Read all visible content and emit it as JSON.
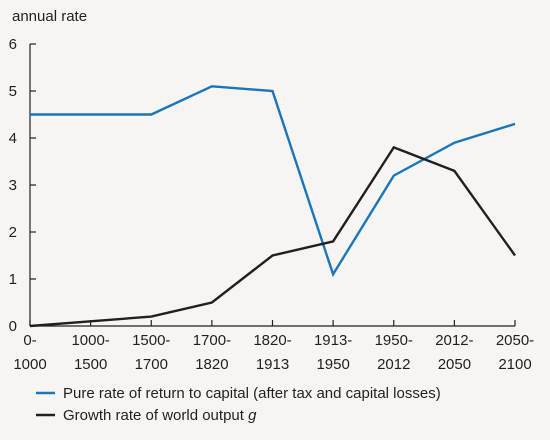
{
  "chart_data": {
    "type": "line",
    "title": "",
    "ylabel": "annual rate",
    "xlabel": "",
    "ylim": [
      0,
      6
    ],
    "yticks": [
      "0",
      "1",
      "2",
      "3",
      "4",
      "5",
      "6"
    ],
    "categories": [
      [
        "0-",
        "1000"
      ],
      [
        "1000-",
        "1500"
      ],
      [
        "1500-",
        "1700"
      ],
      [
        "1700-",
        "1820"
      ],
      [
        "1820-",
        "1913"
      ],
      [
        "1913-",
        "1950"
      ],
      [
        "1950-",
        "2012"
      ],
      [
        "2012-",
        "2050"
      ],
      [
        "2050-",
        "2100"
      ]
    ],
    "grid": false,
    "legend_position": "bottom-left",
    "series": [
      {
        "name": "Pure rate of return to capital (after tax and capital losses)",
        "color": "#1b75bb",
        "values": [
          4.5,
          4.5,
          4.5,
          5.1,
          5.0,
          1.1,
          3.2,
          3.9,
          4.3
        ]
      },
      {
        "name": "Growth rate of world output g",
        "name_plain": "Growth rate of world output ",
        "name_italic": "g",
        "color": "#231f20",
        "values": [
          0.0,
          0.1,
          0.2,
          0.5,
          1.5,
          1.8,
          3.8,
          3.3,
          1.5
        ]
      }
    ]
  }
}
